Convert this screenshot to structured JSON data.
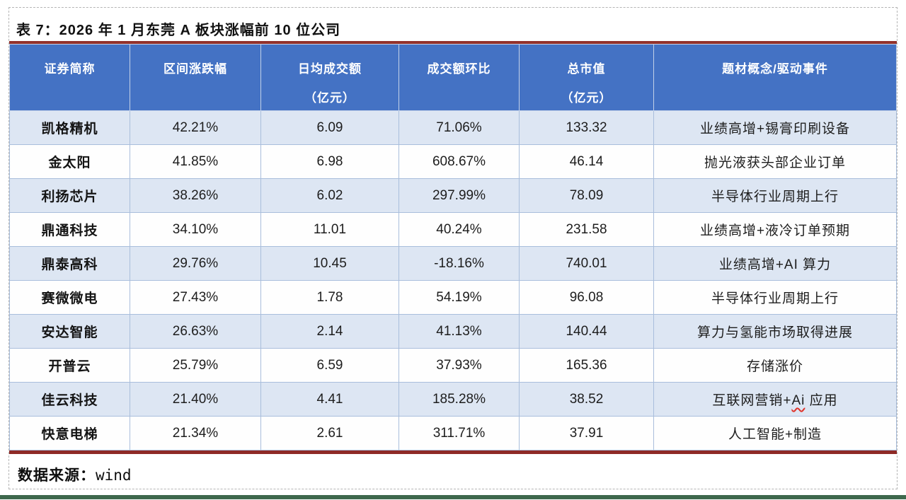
{
  "page": {
    "title": "表 7：2026 年 1 月东莞 A 板块涨幅前 10 位公司",
    "source_label": "数据来源：",
    "source_value": "wind"
  },
  "colors": {
    "header_bg": "#4472C4",
    "header_text": "#FFFFFF",
    "row_alt_bg": "#DDE6F3",
    "row_bg": "#FEFEFE",
    "cell_divider": "#A9BEDC",
    "table_border_red": "#93312B",
    "bottom_bar_green": "#3E684D",
    "squiggle_red": "#E0332A"
  },
  "table": {
    "columns": [
      {
        "label": "证券简称",
        "sub": ""
      },
      {
        "label": "区间涨跌幅",
        "sub": ""
      },
      {
        "label": "日均成交额",
        "sub": "（亿元）"
      },
      {
        "label": "成交额环比",
        "sub": ""
      },
      {
        "label": "总市值",
        "sub": "（亿元）"
      },
      {
        "label": "题材概念/驱动事件",
        "sub": ""
      }
    ],
    "rows": [
      {
        "name": "凯格精机",
        "range_change": "42.21%",
        "avg_daily_turnover": "6.09",
        "turnover_mom": "71.06%",
        "market_cap": "133.32",
        "theme": "业绩高增+锡膏印刷设备"
      },
      {
        "name": "金太阳",
        "range_change": "41.85%",
        "avg_daily_turnover": "6.98",
        "turnover_mom": "608.67%",
        "market_cap": "46.14",
        "theme": "抛光液获头部企业订单"
      },
      {
        "name": "利扬芯片",
        "range_change": "38.26%",
        "avg_daily_turnover": "6.02",
        "turnover_mom": "297.99%",
        "market_cap": "78.09",
        "theme": "半导体行业周期上行"
      },
      {
        "name": "鼎通科技",
        "range_change": "34.10%",
        "avg_daily_turnover": "11.01",
        "turnover_mom": "40.24%",
        "market_cap": "231.58",
        "theme": "业绩高增+液冷订单预期"
      },
      {
        "name": "鼎泰高科",
        "range_change": "29.76%",
        "avg_daily_turnover": "10.45",
        "turnover_mom": "-18.16%",
        "market_cap": "740.01",
        "theme": "业绩高增+AI 算力"
      },
      {
        "name": "赛微微电",
        "range_change": "27.43%",
        "avg_daily_turnover": "1.78",
        "turnover_mom": "54.19%",
        "market_cap": "96.08",
        "theme": "半导体行业周期上行"
      },
      {
        "name": "安达智能",
        "range_change": "26.63%",
        "avg_daily_turnover": "2.14",
        "turnover_mom": "41.13%",
        "market_cap": "140.44",
        "theme": "算力与氢能市场取得进展"
      },
      {
        "name": "开普云",
        "range_change": "25.79%",
        "avg_daily_turnover": "6.59",
        "turnover_mom": "37.93%",
        "market_cap": "165.36",
        "theme": "存储涨价"
      },
      {
        "name": "佳云科技",
        "range_change": "21.40%",
        "avg_daily_turnover": "4.41",
        "turnover_mom": "185.28%",
        "market_cap": "38.52",
        "theme": "互联网营销+Ai 应用",
        "theme_squiggle": "Ai"
      },
      {
        "name": "快意电梯",
        "range_change": "21.34%",
        "avg_daily_turnover": "2.61",
        "turnover_mom": "311.71%",
        "market_cap": "37.91",
        "theme": "人工智能+制造"
      }
    ]
  }
}
